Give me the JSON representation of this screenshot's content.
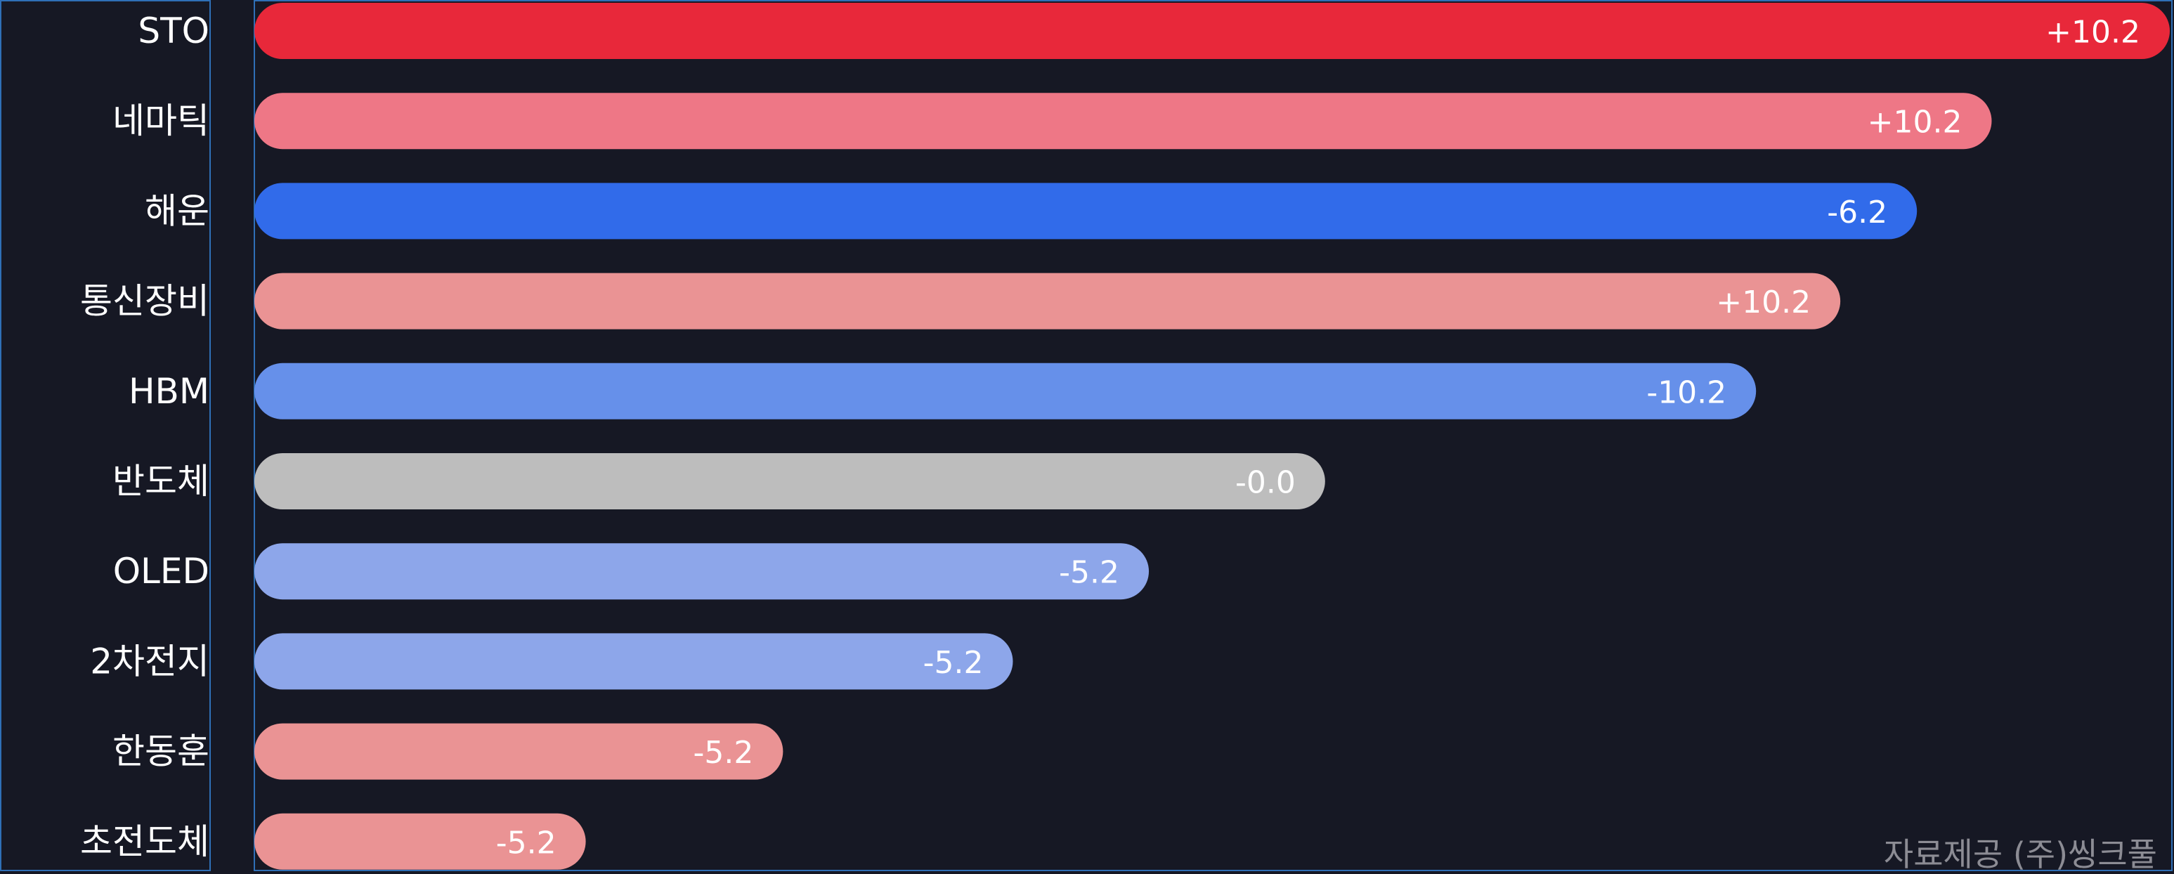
{
  "chart_data": {
    "type": "bar",
    "orientation": "horizontal",
    "title": "",
    "xlabel": "",
    "ylabel": "",
    "grid": false,
    "legend": "none",
    "categories": [
      "STO",
      "네마틱",
      "해운",
      "통신장비",
      "HBM",
      "반도체",
      "OLED",
      "2차전지",
      "한동훈",
      "초전도체"
    ],
    "values": [
      100,
      90.7,
      86.8,
      82.8,
      78.4,
      55.9,
      46.7,
      39.6,
      27.6,
      17.3
    ],
    "value_labels": [
      "+10.2",
      "+10.2",
      "-6.2",
      "+10.2",
      "-10.2",
      "-0.0",
      "-5.2",
      "-5.2",
      "-5.2",
      "-5.2"
    ],
    "bar_colors": [
      "#e8283a",
      "#ee7786",
      "#316bea",
      "#ea9394",
      "#6690ea",
      "#bdbdbd",
      "#8da6ea",
      "#8da6ea",
      "#ea9394",
      "#ea9394"
    ],
    "xlim": [
      0,
      100
    ]
  },
  "credit": "자료제공 (주)씽크풀",
  "colors": {
    "background": "#161824",
    "panel_border": "#2f6fb6",
    "text": "#ffffff",
    "credit_text": "#8c8c94"
  }
}
